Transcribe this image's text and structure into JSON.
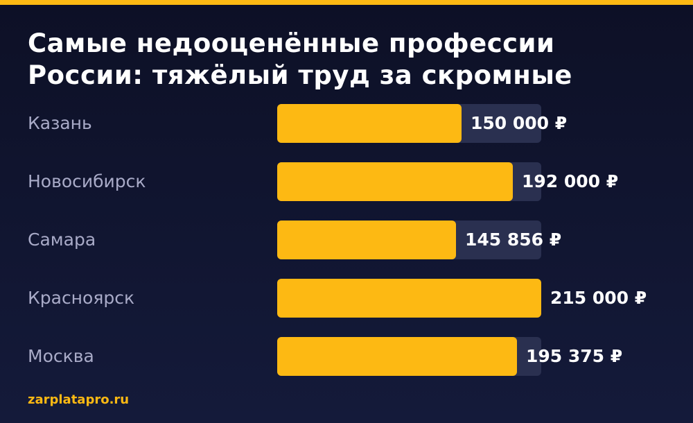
{
  "accent_color": "#fdb913",
  "track_color": "#2a3050",
  "background_color": "#0d1026",
  "title": "Самые недооценённые профессии России: тяжёлый труд за скромные",
  "source": "zarplatapro.ru",
  "chart_data": {
    "type": "bar",
    "orientation": "horizontal",
    "title": "Самые недооценённые профессии России: тяжёлый труд за скромные",
    "categories": [
      "Казань",
      "Новосибирск",
      "Самара",
      "Красноярск",
      "Москва"
    ],
    "values": [
      150000,
      192000,
      145856,
      215000,
      195375
    ],
    "value_labels": [
      "150 000 ₽",
      "192 000 ₽",
      "145 856 ₽",
      "215 000 ₽",
      "195 375 ₽"
    ],
    "xlim": [
      0,
      215000
    ],
    "grid": false,
    "legend": "none"
  }
}
